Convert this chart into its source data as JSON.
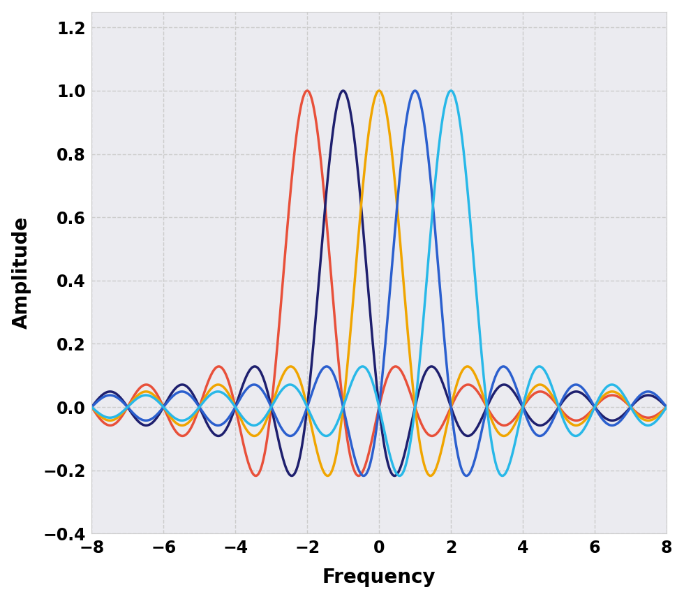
{
  "title": "",
  "xlabel": "Frequency",
  "ylabel": "Amplitude",
  "xlim": [
    -8,
    8
  ],
  "ylim": [
    -0.4,
    1.25
  ],
  "xticks": [
    -8,
    -6,
    -4,
    -2,
    0,
    2,
    4,
    6,
    8
  ],
  "yticks": [
    -0.4,
    -0.2,
    0,
    0.2,
    0.4,
    0.6,
    0.8,
    1.0,
    1.2
  ],
  "subcarrier_centers": [
    -2,
    -1,
    0,
    1,
    2
  ],
  "colors": [
    "#e8503a",
    "#1e1f6e",
    "#f0a500",
    "#2b5fce",
    "#28b8e8"
  ],
  "linewidth": 2.5,
  "outer_background": "#ffffff",
  "plot_background": "#ebebf0",
  "grid_color": "#cccccc",
  "xlabel_fontsize": 20,
  "ylabel_fontsize": 20,
  "tick_fontsize": 17,
  "figsize": [
    9.8,
    8.58
  ],
  "dpi": 100
}
